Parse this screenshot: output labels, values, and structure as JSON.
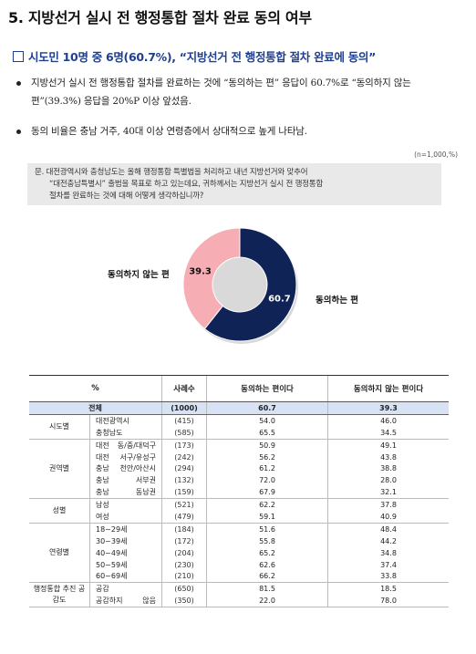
{
  "title": "5. 지방선거 실시 전 행정통합 절차 완료 동의 여부",
  "subheading": "시도민 10명 중 6명(60.7%), “지방선거 전 행정통합 절차 완료에 동의”",
  "bullets": [
    "지방선거 실시 전 행정통합 절차를 완료하는 것에 “동의하는 편” 응답이 60.7%로 “동의하지 않는 편”(39.3%) 응답을 20%P 이상 앞섰음.",
    "동의 비율은 충남 거주, 40대 이상 연령층에서 상대적으로 높게 나타남."
  ],
  "sample_note": "(n=1,000,%)",
  "question": {
    "line1": "문. 대전광역시와 충청남도는 올해 행정통합 특별법을 처리하고 내년 지방선거와 맞추어",
    "line2": "“대전충남특별시” 출범을 목표로 하고 있는데요, 귀하께서는 지방선거 실시 전 행정통합",
    "line3": "절차를 완료하는 것에 대해 어떻게 생각하십니까?"
  },
  "chart_data": {
    "type": "pie",
    "donut": true,
    "slices": [
      {
        "label": "동의하는 편",
        "value": 60.7,
        "color": "#0f2357"
      },
      {
        "label": "동의하지 않는 편",
        "value": 39.3,
        "color": "#f7adb4"
      }
    ],
    "value_labels": [
      "60.7",
      "39.3"
    ]
  },
  "table": {
    "headers": {
      "pct": "%",
      "n": "사례수",
      "agree": "동의하는 편이다",
      "disagree": "동의하지 않는 편이다"
    },
    "total": {
      "label": "전체",
      "n": "(1000)",
      "agree": "60.7",
      "disagree": "39.3"
    },
    "groups": [
      {
        "name": "시도별",
        "rows": [
          {
            "label": "대전광역시",
            "n": "(415)",
            "agree": "54.0",
            "disagree": "46.0"
          },
          {
            "label": "충청남도",
            "n": "(585)",
            "agree": "65.5",
            "disagree": "34.5"
          }
        ]
      },
      {
        "name": "권역별",
        "rows": [
          {
            "label": "대전 동/중/대덕구",
            "n": "(173)",
            "agree": "50.9",
            "disagree": "49.1"
          },
          {
            "label": "대전 서구/유성구",
            "n": "(242)",
            "agree": "56.2",
            "disagree": "43.8"
          },
          {
            "label": "충남 천안/아산시",
            "n": "(294)",
            "agree": "61.2",
            "disagree": "38.8"
          },
          {
            "label": "충남 서부권",
            "n": "(132)",
            "agree": "72.0",
            "disagree": "28.0"
          },
          {
            "label": "충남 동남권",
            "n": "(159)",
            "agree": "67.9",
            "disagree": "32.1"
          }
        ]
      },
      {
        "name": "성별",
        "rows": [
          {
            "label": "남성",
            "n": "(521)",
            "agree": "62.2",
            "disagree": "37.8"
          },
          {
            "label": "여성",
            "n": "(479)",
            "agree": "59.1",
            "disagree": "40.9"
          }
        ]
      },
      {
        "name": "연령별",
        "rows": [
          {
            "label": "18~29세",
            "n": "(184)",
            "agree": "51.6",
            "disagree": "48.4"
          },
          {
            "label": "30~39세",
            "n": "(172)",
            "agree": "55.8",
            "disagree": "44.2"
          },
          {
            "label": "40~49세",
            "n": "(204)",
            "agree": "65.2",
            "disagree": "34.8"
          },
          {
            "label": "50~59세",
            "n": "(230)",
            "agree": "62.6",
            "disagree": "37.4"
          },
          {
            "label": "60~69세",
            "n": "(210)",
            "agree": "66.2",
            "disagree": "33.8"
          }
        ]
      },
      {
        "name": "행정통합 추진 공감도",
        "rows": [
          {
            "label": "공감",
            "n": "(650)",
            "agree": "81.5",
            "disagree": "18.5"
          },
          {
            "label": "공감하지 않음",
            "n": "(350)",
            "agree": "22.0",
            "disagree": "78.0"
          }
        ]
      }
    ]
  }
}
